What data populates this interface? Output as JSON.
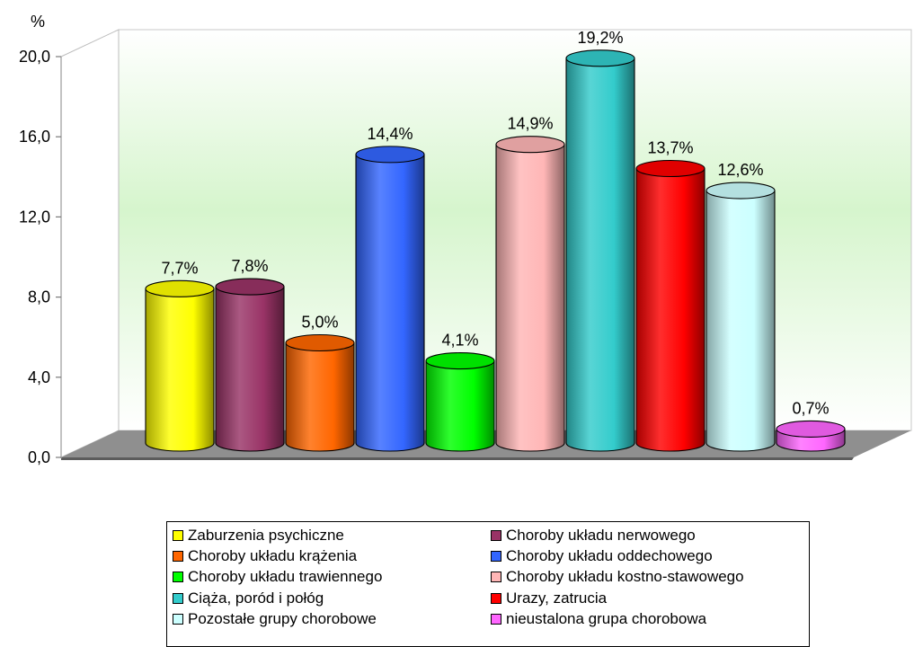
{
  "chart_data": {
    "type": "bar",
    "style": "3d-cylinder",
    "y_unit": "%",
    "ylim": [
      0,
      20
    ],
    "yticks": [
      "0,0",
      "4,0",
      "8,0",
      "12,0",
      "16,0",
      "20,0"
    ],
    "ytick_values": [
      0,
      4,
      8,
      12,
      16,
      20
    ],
    "legend_position": "bottom",
    "series": [
      {
        "name": "Zaburzenia psychiczne",
        "value": 7.7,
        "label": "7,7%",
        "color": "#ffff00"
      },
      {
        "name": "Choroby układu nerwowego",
        "value": 7.8,
        "label": "7,8%",
        "color": "#993366"
      },
      {
        "name": "Choroby układu krążenia",
        "value": 5.0,
        "label": "5,0%",
        "color": "#ff6600"
      },
      {
        "name": "Choroby układu oddechowego",
        "value": 14.4,
        "label": "14,4%",
        "color": "#3366ff"
      },
      {
        "name": "Choroby układu trawiennego",
        "value": 4.1,
        "label": "4,1%",
        "color": "#00ff00"
      },
      {
        "name": "Choroby układu kostno-stawowego",
        "value": 14.9,
        "label": "14,9%",
        "color": "#ffb6b6"
      },
      {
        "name": "Ciąża, poród i połóg",
        "value": 19.2,
        "label": "19,2%",
        "color": "#33cccc"
      },
      {
        "name": "Urazy, zatrucia",
        "value": 13.7,
        "label": "13,7%",
        "color": "#ff0000"
      },
      {
        "name": "Pozostałe grupy chorobowe",
        "value": 12.6,
        "label": "12,6%",
        "color": "#ccffff"
      },
      {
        "name": "nieustalona grupa chorobowa",
        "value": 0.7,
        "label": "0,7%",
        "color": "#ff66ff"
      }
    ]
  }
}
